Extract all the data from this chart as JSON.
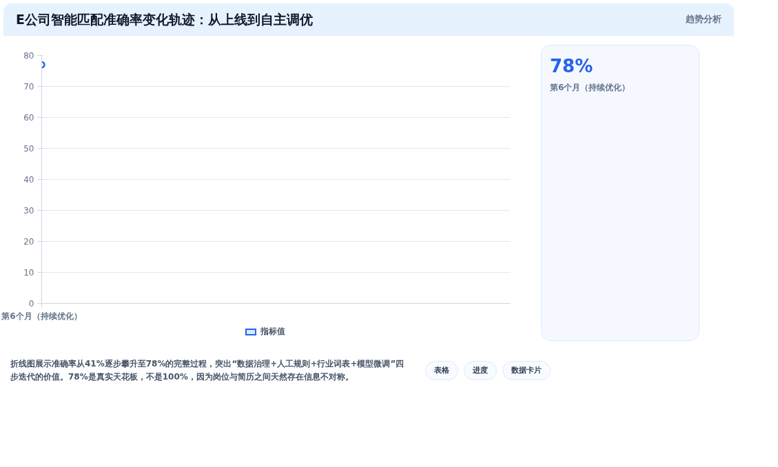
{
  "chart_data": {
    "type": "line",
    "title": "E公司智能匹配准确率变化轨迹：从上线到自主调优",
    "categories": [
      "第6个月（持续优化）"
    ],
    "series": [
      {
        "name": "指标值",
        "color": "#2563eb",
        "values": [
          77
        ]
      }
    ],
    "ylim": [
      0,
      80
    ],
    "yticks": [
      0,
      10,
      20,
      30,
      40,
      50,
      60,
      70,
      80
    ],
    "grid": "y",
    "legend": "bottom",
    "marker": "circle",
    "annotations": [
      "趋势分析",
      "78%",
      "第6个月（持续优化）",
      "折线图展示准确率从41%逐步攀升至78%的完整过程，突出“数据治理+人工规则+行业词表+模型微调”四步迭代的价值。78%是真实天花板，不是100%，因为岗位与简历之间天然存在信息不对称。",
      "表格",
      "进度",
      "数据卡片"
    ]
  }
}
